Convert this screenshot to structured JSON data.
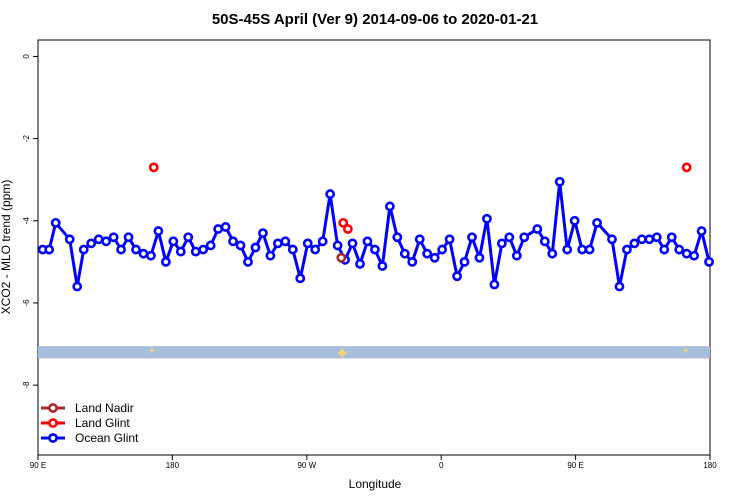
{
  "chart_data": {
    "type": "line",
    "title": "50S-45S April (Ver 9)   2014-09-06 to 2020-01-21",
    "xlabel": "Longitude",
    "ylabel": "XCO2 - MLO trend (ppm)",
    "xlim": [
      -90,
      270
    ],
    "ylim": [
      -9.7,
      0.4
    ],
    "x_ticks": [
      {
        "value": -90,
        "label": "90 E"
      },
      {
        "value": -18,
        "label": "180"
      },
      {
        "value": 54,
        "label": "90 W"
      },
      {
        "value": 126,
        "label": "0"
      },
      {
        "value": 198,
        "label": "90 E"
      },
      {
        "value": 270,
        "label": "180"
      }
    ],
    "y_ticks": [
      {
        "value": 0,
        "label": "0"
      },
      {
        "value": -2,
        "label": "-2"
      },
      {
        "value": -4,
        "label": "-4"
      },
      {
        "value": -6,
        "label": "-6"
      },
      {
        "value": -8,
        "label": "-8"
      }
    ],
    "grid": false,
    "legend_position": "bottom-left",
    "series": [
      {
        "name": "Land Nadir",
        "color": "#a52a2a",
        "points": [
          [
            72.5,
            -4.9
          ]
        ]
      },
      {
        "name": "Land Glint",
        "color": "#ff0000",
        "points": [
          [
            -28,
            -2.7
          ],
          [
            73.5,
            -4.05
          ],
          [
            76,
            -4.2
          ],
          [
            257.5,
            -2.7
          ]
        ]
      },
      {
        "name": "Ocean Glint",
        "color": "#0000ff",
        "points": [
          [
            -87.5,
            -4.7
          ],
          [
            -84,
            -4.7
          ],
          [
            -80.5,
            -4.05
          ],
          [
            -73,
            -4.45
          ],
          [
            -69,
            -5.6
          ],
          [
            -65.5,
            -4.7
          ],
          [
            -61.5,
            -4.55
          ],
          [
            -57.5,
            -4.45
          ],
          [
            -53.5,
            -4.5
          ],
          [
            -49.5,
            -4.4
          ],
          [
            -45.5,
            -4.7
          ],
          [
            -41.5,
            -4.4
          ],
          [
            -37.5,
            -4.7
          ],
          [
            -33.5,
            -4.8
          ],
          [
            -29.5,
            -4.85
          ],
          [
            -25.5,
            -4.25
          ],
          [
            -21.5,
            -5.0
          ],
          [
            -17.5,
            -4.5
          ],
          [
            -13.5,
            -4.75
          ],
          [
            -9.5,
            -4.4
          ],
          [
            -5.5,
            -4.75
          ],
          [
            -1.5,
            -4.7
          ],
          [
            2.5,
            -4.6
          ],
          [
            6.5,
            -4.2
          ],
          [
            10.5,
            -4.15
          ],
          [
            14.5,
            -4.5
          ],
          [
            18.5,
            -4.6
          ],
          [
            22.5,
            -5.0
          ],
          [
            26.5,
            -4.65
          ],
          [
            30.5,
            -4.3
          ],
          [
            34.5,
            -4.85
          ],
          [
            38.5,
            -4.55
          ],
          [
            42.5,
            -4.5
          ],
          [
            46.5,
            -4.7
          ],
          [
            50.5,
            -5.4
          ],
          [
            54.5,
            -4.55
          ],
          [
            58.5,
            -4.7
          ],
          [
            62.5,
            -4.5
          ],
          [
            66.5,
            -3.35
          ],
          [
            70.5,
            -4.6
          ],
          [
            74.5,
            -4.95
          ],
          [
            78.5,
            -4.55
          ],
          [
            82.5,
            -5.05
          ],
          [
            86.5,
            -4.5
          ],
          [
            90.5,
            -4.7
          ],
          [
            94.5,
            -5.1
          ],
          [
            98.5,
            -3.65
          ],
          [
            102.5,
            -4.4
          ],
          [
            106.5,
            -4.8
          ],
          [
            110.5,
            -5.0
          ],
          [
            114.5,
            -4.45
          ],
          [
            118.5,
            -4.8
          ],
          [
            122.5,
            -4.9
          ],
          [
            126.5,
            -4.7
          ],
          [
            130.5,
            -4.45
          ],
          [
            134.5,
            -5.35
          ],
          [
            138.5,
            -5.0
          ],
          [
            142.5,
            -4.4
          ],
          [
            146.5,
            -4.9
          ],
          [
            150.5,
            -3.95
          ],
          [
            154.5,
            -5.55
          ],
          [
            158.5,
            -4.55
          ],
          [
            162.5,
            -4.4
          ],
          [
            166.5,
            -4.85
          ],
          [
            170.5,
            -4.4
          ],
          [
            177.5,
            -4.2
          ],
          [
            181.5,
            -4.5
          ],
          [
            185.5,
            -4.8
          ],
          [
            189.5,
            -3.05
          ],
          [
            193.5,
            -4.7
          ],
          [
            197.5,
            -4.0
          ],
          [
            201.5,
            -4.7
          ],
          [
            205.5,
            -4.7
          ],
          [
            209.5,
            -4.05
          ],
          [
            217.5,
            -4.45
          ],
          [
            221.5,
            -5.6
          ],
          [
            225.5,
            -4.7
          ],
          [
            229.5,
            -4.55
          ],
          [
            233.5,
            -4.45
          ],
          [
            237.5,
            -4.45
          ],
          [
            241.5,
            -4.4
          ],
          [
            245.5,
            -4.7
          ],
          [
            249.5,
            -4.4
          ],
          [
            253.5,
            -4.7
          ],
          [
            257.5,
            -4.8
          ],
          [
            261.5,
            -4.85
          ],
          [
            265.5,
            -4.25
          ],
          [
            269.5,
            -5.0
          ]
        ]
      }
    ],
    "land_band": {
      "color": "#a8bfdc",
      "y_range": [
        -7.35,
        -7.05
      ],
      "marker_color": "#f5d76e",
      "markers": [
        [
          -29,
          -7.15
        ],
        [
          73,
          -7.22
        ],
        [
          257,
          -7.15
        ]
      ]
    }
  }
}
